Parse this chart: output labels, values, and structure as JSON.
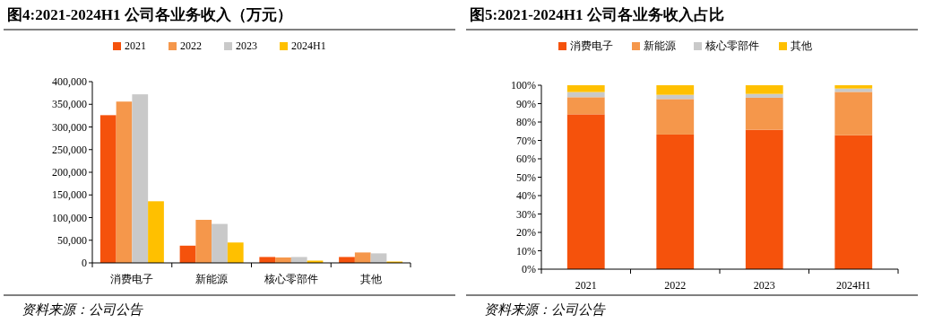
{
  "chart_data": [
    {
      "type": "bar",
      "title": "图4:2021-2024H1 公司各业务收入（万元）",
      "categories": [
        "消费电子",
        "新能源",
        "核心零部件",
        "其他"
      ],
      "series": [
        {
          "name": "2021",
          "color": "#f5520c",
          "values": [
            326000,
            38000,
            13000,
            13000
          ]
        },
        {
          "name": "2022",
          "color": "#f5974b",
          "values": [
            356000,
            95000,
            12000,
            23000
          ]
        },
        {
          "name": "2023",
          "color": "#c9c9c9",
          "values": [
            372000,
            86000,
            13000,
            21000
          ]
        },
        {
          "name": "2024H1",
          "color": "#ffc000",
          "values": [
            136000,
            45000,
            5000,
            3000
          ]
        }
      ],
      "ylim": [
        0,
        400000
      ],
      "yticks": [
        {
          "value": 0,
          "label": "0"
        },
        {
          "value": 50000,
          "label": "50,000"
        },
        {
          "value": 100000,
          "label": "100,000"
        },
        {
          "value": 150000,
          "label": "150,000"
        },
        {
          "value": 200000,
          "label": "200,000"
        },
        {
          "value": 250000,
          "label": "250,000"
        },
        {
          "value": 300000,
          "label": "300,000"
        },
        {
          "value": 350000,
          "label": "350,000"
        },
        {
          "value": 400000,
          "label": "400,000"
        }
      ],
      "legend": "top",
      "annotations": [
        "资料来源：公司公告"
      ]
    },
    {
      "type": "bar",
      "stacked": true,
      "title": "图5:2021-2024H1 公司各业务收入占比",
      "categories": [
        "2021",
        "2022",
        "2023",
        "2024H1"
      ],
      "series": [
        {
          "name": "消费电子",
          "color": "#f5520c",
          "values": [
            84.2,
            73.2,
            75.8,
            72.8
          ]
        },
        {
          "name": "新能源",
          "color": "#f5974b",
          "values": [
            9.3,
            19.3,
            17.4,
            23.6
          ]
        },
        {
          "name": "核心零部件",
          "color": "#c9c9c9",
          "values": [
            2.8,
            2.3,
            2.1,
            1.8
          ]
        },
        {
          "name": "其他",
          "color": "#ffc000",
          "values": [
            3.7,
            5.2,
            4.7,
            1.8
          ]
        }
      ],
      "ylim": [
        0,
        100
      ],
      "yticks": [
        {
          "value": 0,
          "label": "0%"
        },
        {
          "value": 10,
          "label": "10%"
        },
        {
          "value": 20,
          "label": "20%"
        },
        {
          "value": 30,
          "label": "30%"
        },
        {
          "value": 40,
          "label": "40%"
        },
        {
          "value": 50,
          "label": "50%"
        },
        {
          "value": 60,
          "label": "60%"
        },
        {
          "value": 70,
          "label": "70%"
        },
        {
          "value": 80,
          "label": "80%"
        },
        {
          "value": 90,
          "label": "90%"
        },
        {
          "value": 100,
          "label": "100%"
        }
      ],
      "legend": "top",
      "annotations": [
        "资料来源：公司公告"
      ]
    }
  ]
}
